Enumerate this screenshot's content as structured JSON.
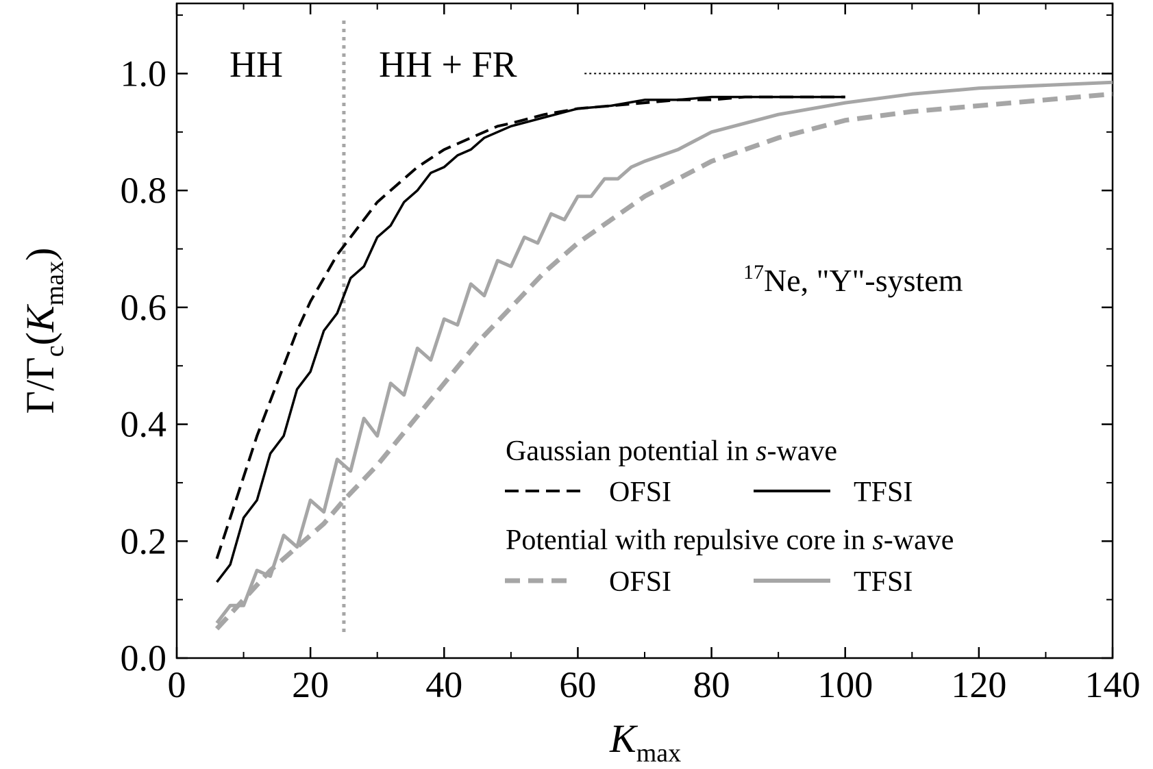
{
  "chart_data": {
    "type": "line",
    "title": "",
    "xlabel_main": "K",
    "xlabel_sub": "max",
    "ylabel_parts": [
      "Γ/Γ",
      "c",
      "(",
      "K",
      "max",
      ")"
    ],
    "xlim": [
      0,
      140
    ],
    "ylim": [
      0,
      1.12
    ],
    "x_ticks": [
      0,
      20,
      40,
      60,
      80,
      100,
      120,
      140
    ],
    "x_tick_labels": [
      "0",
      "20",
      "40",
      "60",
      "80",
      "100",
      "120",
      "140"
    ],
    "y_ticks": [
      0.0,
      0.2,
      0.4,
      0.6,
      0.8,
      1.0
    ],
    "y_tick_labels": [
      "0.0",
      "0.2",
      "0.4",
      "0.6",
      "0.8",
      "1.0"
    ],
    "grid": false,
    "annotations": {
      "region_hh": "HH",
      "region_hh_fr": "HH + FR",
      "system_sup": "17",
      "system_label": "Ne, \"Y\"-system",
      "divider_x": 25,
      "reference_y": 1.0,
      "reference_x_start": 61
    },
    "legend": {
      "placement": "lower-right",
      "group1_title_a": "Gaussian potential in ",
      "group1_title_italic": "s",
      "group1_title_b": "-wave",
      "group2_title_a": "Potential with repulsive core in ",
      "group2_title_italic": "s",
      "group2_title_b": "-wave",
      "ofsi": "OFSI",
      "tfsi": "TFSI"
    },
    "colors": {
      "black": "#000000",
      "gray": "#a6a6a6",
      "divider": "#a6a6a6"
    },
    "series": [
      {
        "name": "OFSI",
        "group": "Gaussian potential in s-wave",
        "color": "#000000",
        "style": "dashed",
        "x": [
          6,
          8,
          10,
          12,
          14,
          16,
          18,
          20,
          22,
          24,
          26,
          28,
          30,
          32,
          34,
          36,
          38,
          40,
          42,
          44,
          46,
          48,
          50,
          55,
          60,
          65,
          70,
          75,
          80,
          85,
          90,
          95,
          100
        ],
        "y": [
          0.17,
          0.24,
          0.31,
          0.38,
          0.44,
          0.5,
          0.56,
          0.61,
          0.65,
          0.69,
          0.72,
          0.75,
          0.78,
          0.8,
          0.82,
          0.84,
          0.855,
          0.87,
          0.88,
          0.89,
          0.9,
          0.91,
          0.915,
          0.93,
          0.94,
          0.945,
          0.95,
          0.955,
          0.955,
          0.96,
          0.96,
          0.96,
          0.96
        ]
      },
      {
        "name": "TFSI",
        "group": "Gaussian potential in s-wave",
        "color": "#000000",
        "style": "solid",
        "x": [
          6,
          8,
          10,
          12,
          14,
          16,
          18,
          20,
          22,
          24,
          26,
          28,
          30,
          32,
          34,
          36,
          38,
          40,
          42,
          44,
          46,
          48,
          50,
          55,
          60,
          65,
          70,
          75,
          80,
          85,
          90,
          95,
          100
        ],
        "y": [
          0.13,
          0.16,
          0.24,
          0.27,
          0.35,
          0.38,
          0.46,
          0.49,
          0.56,
          0.59,
          0.65,
          0.67,
          0.72,
          0.74,
          0.78,
          0.8,
          0.83,
          0.84,
          0.86,
          0.87,
          0.89,
          0.9,
          0.91,
          0.925,
          0.94,
          0.945,
          0.955,
          0.955,
          0.96,
          0.96,
          0.96,
          0.96,
          0.96
        ]
      },
      {
        "name": "OFSI",
        "group": "Potential with repulsive core in s-wave",
        "color": "#a6a6a6",
        "style": "dashed",
        "x": [
          6,
          10,
          14,
          18,
          22,
          25,
          30,
          35,
          40,
          45,
          50,
          55,
          60,
          65,
          70,
          75,
          80,
          90,
          100,
          110,
          120,
          130,
          140
        ],
        "y": [
          0.05,
          0.1,
          0.15,
          0.19,
          0.23,
          0.27,
          0.33,
          0.4,
          0.47,
          0.54,
          0.6,
          0.66,
          0.71,
          0.75,
          0.79,
          0.82,
          0.85,
          0.89,
          0.92,
          0.935,
          0.945,
          0.955,
          0.965
        ]
      },
      {
        "name": "TFSI",
        "group": "Potential with repulsive core in s-wave",
        "color": "#a6a6a6",
        "style": "solid",
        "x": [
          6,
          8,
          10,
          12,
          14,
          16,
          18,
          20,
          22,
          24,
          26,
          28,
          30,
          32,
          34,
          36,
          38,
          40,
          42,
          44,
          46,
          48,
          50,
          52,
          54,
          56,
          58,
          60,
          62,
          64,
          66,
          68,
          70,
          75,
          80,
          90,
          100,
          110,
          120,
          130,
          140
        ],
        "y": [
          0.06,
          0.09,
          0.09,
          0.15,
          0.14,
          0.21,
          0.19,
          0.27,
          0.25,
          0.34,
          0.32,
          0.41,
          0.38,
          0.47,
          0.45,
          0.53,
          0.51,
          0.58,
          0.57,
          0.64,
          0.62,
          0.68,
          0.67,
          0.72,
          0.71,
          0.76,
          0.75,
          0.79,
          0.79,
          0.82,
          0.82,
          0.84,
          0.85,
          0.87,
          0.9,
          0.93,
          0.95,
          0.965,
          0.975,
          0.98,
          0.985
        ]
      }
    ]
  }
}
